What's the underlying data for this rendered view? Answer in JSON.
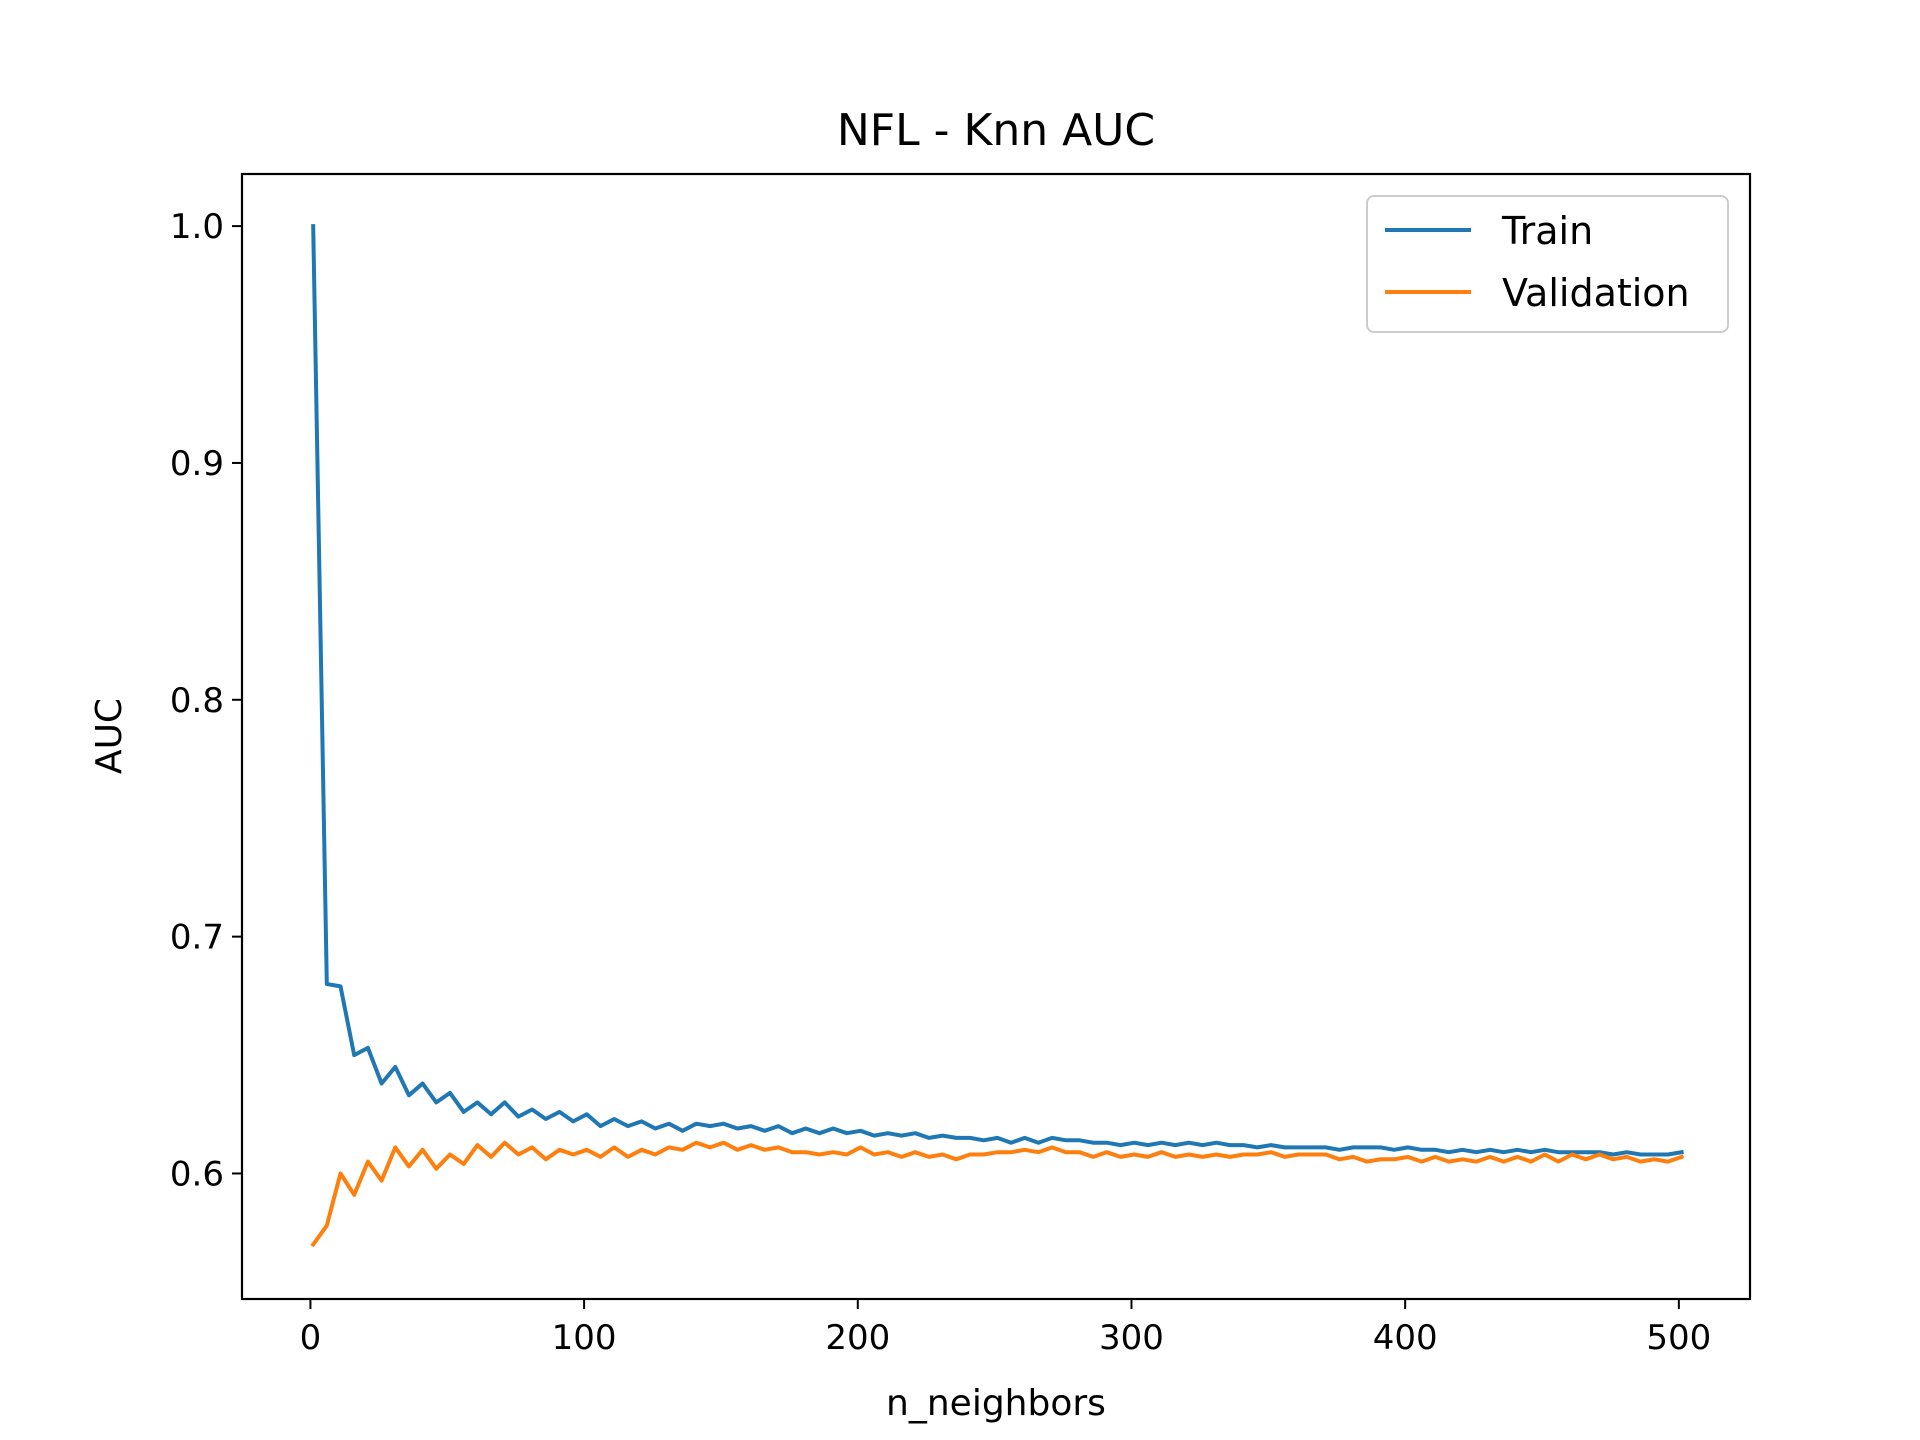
{
  "chart_data": {
    "type": "line",
    "title": "NFL - Knn AUC",
    "xlabel": "n_neighbors",
    "ylabel": "AUC",
    "xlim": [
      -25,
      526
    ],
    "ylim": [
      0.547,
      1.022
    ],
    "xticks": [
      0,
      100,
      200,
      300,
      400,
      500
    ],
    "xtick_labels": [
      "0",
      "100",
      "200",
      "300",
      "400",
      "500"
    ],
    "yticks": [
      0.6,
      0.7,
      0.8,
      0.9,
      1.0
    ],
    "ytick_labels": [
      "0.6",
      "0.7",
      "0.8",
      "0.9",
      "1.0"
    ],
    "grid": false,
    "legend_position": "top-right",
    "x": [
      1,
      6,
      11,
      16,
      21,
      26,
      31,
      36,
      41,
      46,
      51,
      56,
      61,
      66,
      71,
      76,
      81,
      86,
      91,
      96,
      101,
      106,
      111,
      116,
      121,
      126,
      131,
      136,
      141,
      146,
      151,
      156,
      161,
      166,
      171,
      176,
      181,
      186,
      191,
      196,
      201,
      206,
      211,
      216,
      221,
      226,
      231,
      236,
      241,
      246,
      251,
      256,
      261,
      266,
      271,
      276,
      281,
      286,
      291,
      296,
      301,
      306,
      311,
      316,
      321,
      326,
      331,
      336,
      341,
      346,
      351,
      356,
      361,
      366,
      371,
      376,
      381,
      386,
      391,
      396,
      401,
      406,
      411,
      416,
      421,
      426,
      431,
      436,
      441,
      446,
      451,
      456,
      461,
      466,
      471,
      476,
      481,
      486,
      491,
      496,
      501
    ],
    "series": [
      {
        "name": "Train",
        "color": "#1f77b4",
        "values": [
          1.0,
          0.68,
          0.679,
          0.65,
          0.653,
          0.638,
          0.645,
          0.633,
          0.638,
          0.63,
          0.634,
          0.626,
          0.63,
          0.625,
          0.63,
          0.624,
          0.627,
          0.623,
          0.626,
          0.622,
          0.625,
          0.62,
          0.623,
          0.62,
          0.622,
          0.619,
          0.621,
          0.618,
          0.621,
          0.62,
          0.621,
          0.619,
          0.62,
          0.618,
          0.62,
          0.617,
          0.619,
          0.617,
          0.619,
          0.617,
          0.618,
          0.616,
          0.617,
          0.616,
          0.617,
          0.615,
          0.616,
          0.615,
          0.615,
          0.614,
          0.615,
          0.613,
          0.615,
          0.613,
          0.615,
          0.614,
          0.614,
          0.613,
          0.613,
          0.612,
          0.613,
          0.612,
          0.613,
          0.612,
          0.613,
          0.612,
          0.613,
          0.612,
          0.612,
          0.611,
          0.612,
          0.611,
          0.611,
          0.611,
          0.611,
          0.61,
          0.611,
          0.611,
          0.611,
          0.61,
          0.611,
          0.61,
          0.61,
          0.609,
          0.61,
          0.609,
          0.61,
          0.609,
          0.61,
          0.609,
          0.61,
          0.609,
          0.609,
          0.609,
          0.609,
          0.608,
          0.609,
          0.608,
          0.608,
          0.608,
          0.609
        ]
      },
      {
        "name": "Validation",
        "color": "#ff7f0e",
        "values": [
          0.57,
          0.578,
          0.6,
          0.591,
          0.605,
          0.597,
          0.611,
          0.603,
          0.61,
          0.602,
          0.608,
          0.604,
          0.612,
          0.607,
          0.613,
          0.608,
          0.611,
          0.606,
          0.61,
          0.608,
          0.61,
          0.607,
          0.611,
          0.607,
          0.61,
          0.608,
          0.611,
          0.61,
          0.613,
          0.611,
          0.613,
          0.61,
          0.612,
          0.61,
          0.611,
          0.609,
          0.609,
          0.608,
          0.609,
          0.608,
          0.611,
          0.608,
          0.609,
          0.607,
          0.609,
          0.607,
          0.608,
          0.606,
          0.608,
          0.608,
          0.609,
          0.609,
          0.61,
          0.609,
          0.611,
          0.609,
          0.609,
          0.607,
          0.609,
          0.607,
          0.608,
          0.607,
          0.609,
          0.607,
          0.608,
          0.607,
          0.608,
          0.607,
          0.608,
          0.608,
          0.609,
          0.607,
          0.608,
          0.608,
          0.608,
          0.606,
          0.607,
          0.605,
          0.606,
          0.606,
          0.607,
          0.605,
          0.607,
          0.605,
          0.606,
          0.605,
          0.607,
          0.605,
          0.607,
          0.605,
          0.608,
          0.605,
          0.608,
          0.606,
          0.608,
          0.606,
          0.607,
          0.605,
          0.606,
          0.605,
          0.607
        ]
      }
    ]
  }
}
